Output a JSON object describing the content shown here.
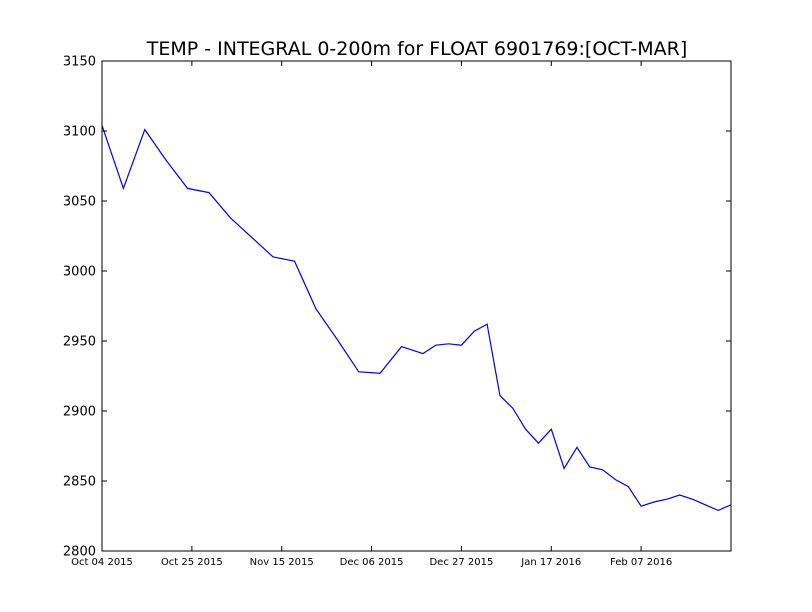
{
  "chart_data": {
    "type": "line",
    "title": "TEMP - INTEGRAL 0-200m for FLOAT 6901769:[OCT-MAR]",
    "xlabel": "",
    "ylabel": "",
    "ylim": [
      2800,
      3150
    ],
    "xlim": [
      "2015-10-04",
      "2016-02-28"
    ],
    "y_ticks": [
      2800,
      2850,
      2900,
      2950,
      3000,
      3050,
      3100,
      3150
    ],
    "x_ticks": [
      {
        "date": "2015-10-04",
        "label": "Oct 04 2015"
      },
      {
        "date": "2015-10-25",
        "label": "Oct 25 2015"
      },
      {
        "date": "2015-11-15",
        "label": "Nov 15 2015"
      },
      {
        "date": "2015-12-06",
        "label": "Dec 06 2015"
      },
      {
        "date": "2015-12-27",
        "label": "Dec 27 2015"
      },
      {
        "date": "2016-01-17",
        "label": "Jan 17 2016"
      },
      {
        "date": "2016-02-07",
        "label": "Feb 07 2016"
      }
    ],
    "grid": false,
    "series": [
      {
        "color": "#0000ff",
        "x": [
          "2015-10-04",
          "2015-10-09",
          "2015-10-14",
          "2015-10-19",
          "2015-10-24",
          "2015-10-29",
          "2015-11-03",
          "2015-11-08",
          "2015-11-13",
          "2015-11-18",
          "2015-11-23",
          "2015-11-28",
          "2015-12-03",
          "2015-12-08",
          "2015-12-13",
          "2015-12-18",
          "2015-12-21",
          "2015-12-24",
          "2015-12-27",
          "2015-12-30",
          "2016-01-02",
          "2016-01-05",
          "2016-01-08",
          "2016-01-11",
          "2016-01-14",
          "2016-01-17",
          "2016-01-20",
          "2016-01-23",
          "2016-01-26",
          "2016-01-29",
          "2016-02-01",
          "2016-02-04",
          "2016-02-07",
          "2016-02-10",
          "2016-02-13",
          "2016-02-16",
          "2016-02-19",
          "2016-02-22",
          "2016-02-25",
          "2016-02-28"
        ],
        "y": [
          3104,
          3059,
          3101,
          3079,
          3059,
          3056,
          3038,
          3024,
          3010,
          3007,
          2973,
          2951,
          2928,
          2927,
          2946,
          2941,
          2947,
          2948,
          2947,
          2957,
          2962,
          2911,
          2902,
          2887,
          2877,
          2887,
          2859,
          2874,
          2860,
          2858,
          2851,
          2846,
          2832,
          2835,
          2837,
          2840,
          2837,
          2833,
          2829,
          2833
        ]
      }
    ]
  }
}
